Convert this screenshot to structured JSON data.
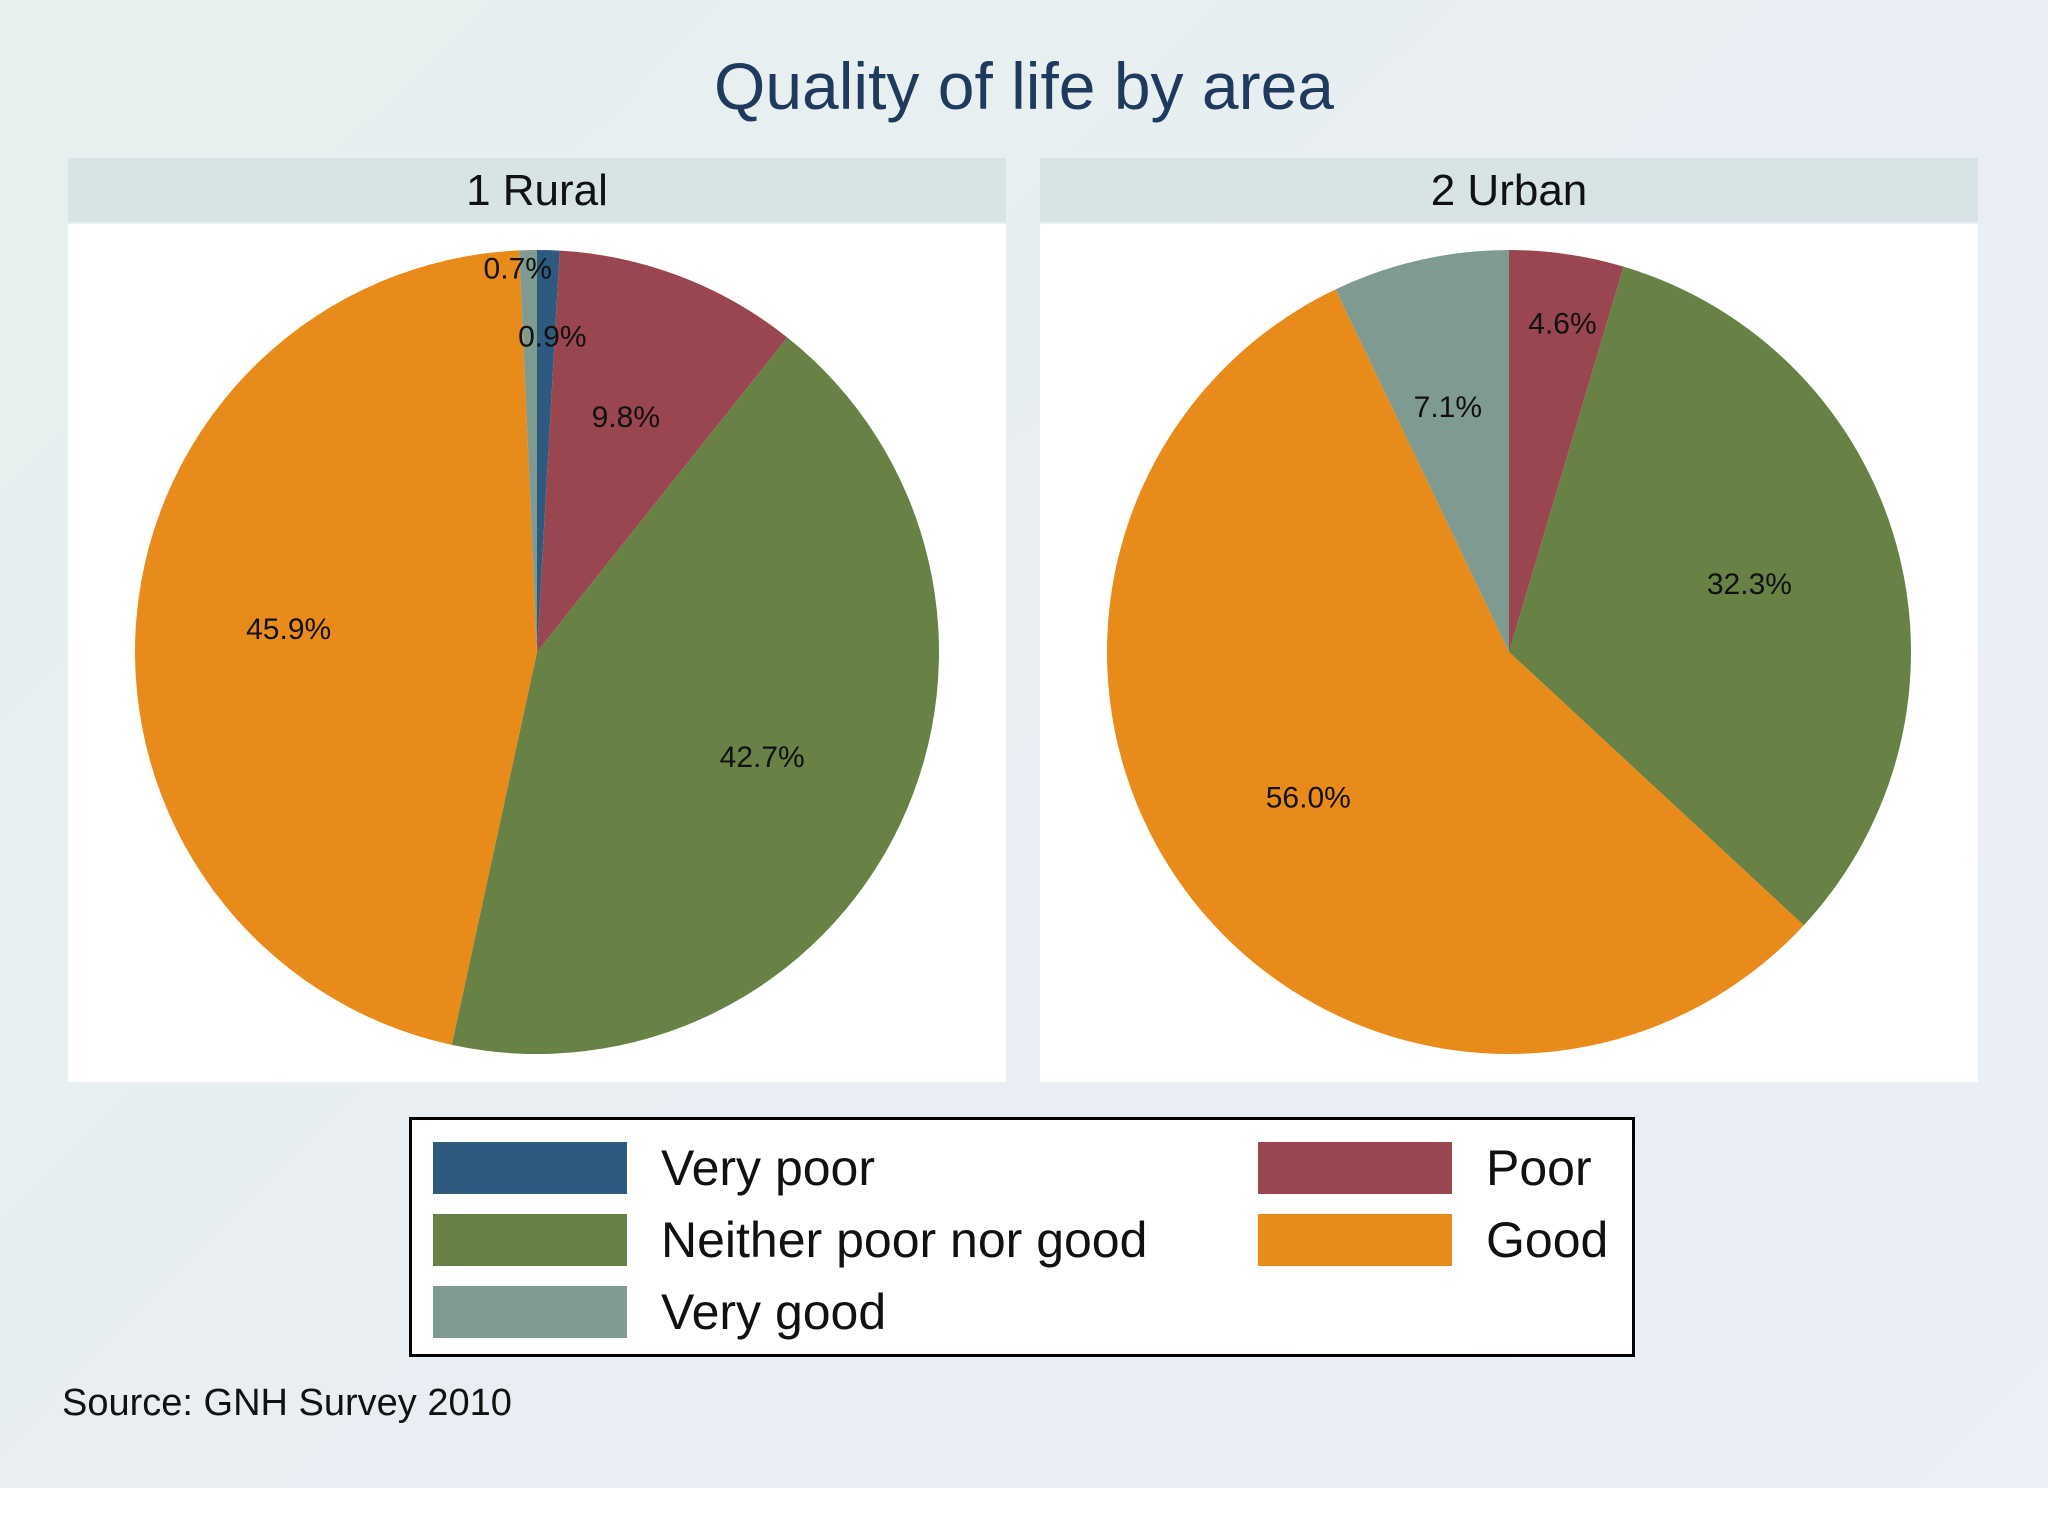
{
  "chart_data": {
    "type": "pie",
    "title": "Quality of life by area",
    "categories": [
      "Very poor",
      "Poor",
      "Neither poor nor good",
      "Good",
      "Very good"
    ],
    "colors": {
      "Very poor": "#2e5a80",
      "Poor": "#9a4650",
      "Neither poor nor good": "#678244",
      "Good": "#e88b1a",
      "Very good": "#7f9a90"
    },
    "panels": [
      {
        "label": "1 Rural",
        "slices": [
          {
            "category": "Very poor",
            "value": 0.9,
            "label": "0.9%"
          },
          {
            "category": "Poor",
            "value": 9.8,
            "label": "9.8%"
          },
          {
            "category": "Neither poor nor good",
            "value": 42.7,
            "label": "42.7%"
          },
          {
            "category": "Good",
            "value": 45.9,
            "label": "45.9%"
          },
          {
            "category": "Very good",
            "value": 0.7,
            "label": "0.7%"
          }
        ]
      },
      {
        "label": "2 Urban",
        "slices": [
          {
            "category": "Very poor",
            "value": 0.0,
            "label": ""
          },
          {
            "category": "Poor",
            "value": 4.6,
            "label": "4.6%"
          },
          {
            "category": "Neither poor nor good",
            "value": 32.3,
            "label": "32.3%"
          },
          {
            "category": "Good",
            "value": 56.0,
            "label": "56.0%"
          },
          {
            "category": "Very good",
            "value": 7.1,
            "label": "7.1%"
          }
        ]
      }
    ],
    "legend": {
      "placement": "bottom",
      "entries": [
        "Very poor",
        "Poor",
        "Neither poor nor good",
        "Good",
        "Very good"
      ]
    },
    "note": "Source: GNH Survey 2010"
  }
}
